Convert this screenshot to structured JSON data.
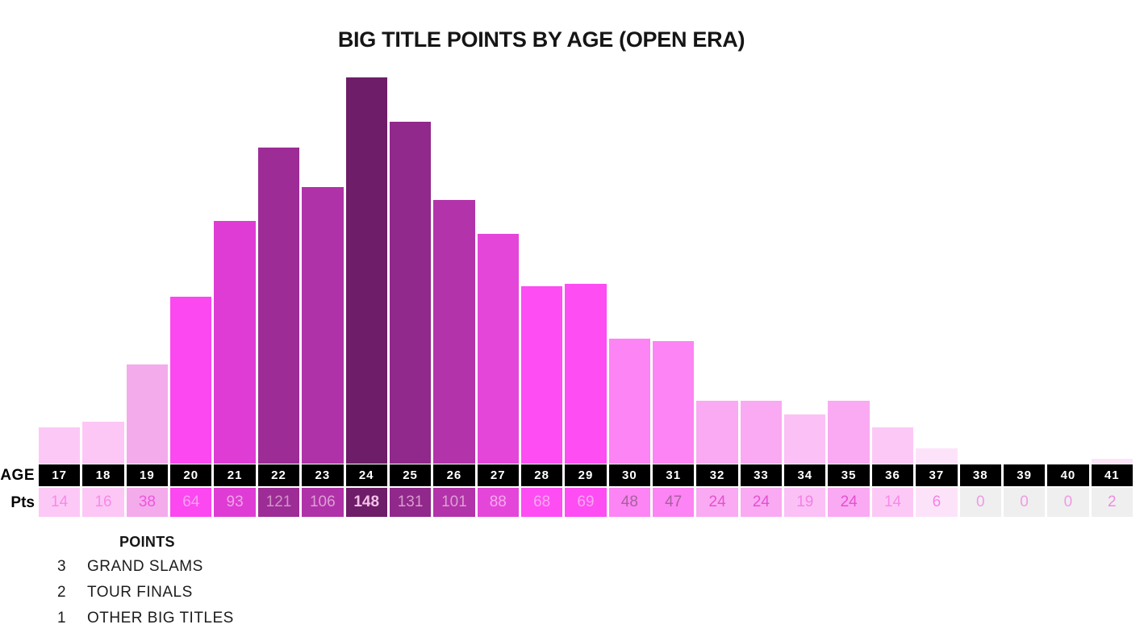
{
  "chart_data": {
    "type": "bar",
    "title": "BIG TITLE POINTS BY AGE (OPEN ERA)",
    "row_labels": {
      "age": "AGE",
      "points": "Pts"
    },
    "categories": [
      17,
      18,
      19,
      20,
      21,
      22,
      23,
      24,
      25,
      26,
      27,
      28,
      29,
      30,
      31,
      32,
      33,
      34,
      35,
      36,
      37,
      38,
      39,
      40,
      41
    ],
    "values": [
      14,
      16,
      38,
      64,
      93,
      121,
      106,
      148,
      131,
      101,
      88,
      68,
      69,
      48,
      47,
      24,
      24,
      19,
      24,
      14,
      6,
      0,
      0,
      0,
      2
    ],
    "ylim": [
      0,
      148
    ],
    "grid": false,
    "bar_colors": [
      "#fcc9f6",
      "#fcc7f5",
      "#f4abec",
      "#fb48f0",
      "#de3cd4",
      "#9d2c96",
      "#b032a8",
      "#6e1d68",
      "#91288b",
      "#b233aa",
      "#e446da",
      "#fd4df3",
      "#fd4df3",
      "#fd84f4",
      "#fd84f4",
      "#f9aaf2",
      "#f9aaf2",
      "#fbc0f5",
      "#f9aaf2",
      "#fcc9f6",
      "#fde3f9",
      "",
      "",
      "",
      "#fce4f8"
    ],
    "cell_colors": [
      "#fcc9f6",
      "#fcc7f5",
      "#f4abec",
      "#fb48f0",
      "#de3cd4",
      "#9d2c96",
      "#b032a8",
      "#6e1d68",
      "#91288b",
      "#b233aa",
      "#e446da",
      "#fd4df3",
      "#fd4df3",
      "#fd84f4",
      "#fd84f4",
      "#f9aaf2",
      "#f9aaf2",
      "#fbc0f5",
      "#f9aaf2",
      "#fcc9f6",
      "#fde3f9",
      "#efeff0",
      "#efeff0",
      "#efeff0",
      "#efeff0"
    ],
    "value_text_colors": [
      "#f88ae9",
      "#f88ae9",
      "#ee55dd",
      "#fa9ff2",
      "#efa3e7",
      "#d193c8",
      "#dd9fd5",
      "#f3c1e9",
      "#d89ccf",
      "#dd9fd5",
      "#f6a9ec",
      "#faa7f1",
      "#faa7f1",
      "#a6619e",
      "#a6619e",
      "#e650d0",
      "#e650d0",
      "#f381e6",
      "#e650d0",
      "#f88ae9",
      "#f583e5",
      "#f09ae4",
      "#f09ae4",
      "#f09ae4",
      "#f08ae2"
    ],
    "age_cell_bg": "#000000",
    "age_cell_text": "#ffffff",
    "legend": {
      "title": "POINTS",
      "items": [
        {
          "points": "3",
          "label": "GRAND SLAMS"
        },
        {
          "points": "2",
          "label": "TOUR FINALS"
        },
        {
          "points": "1",
          "label": "OTHER BIG TITLES"
        }
      ]
    }
  }
}
